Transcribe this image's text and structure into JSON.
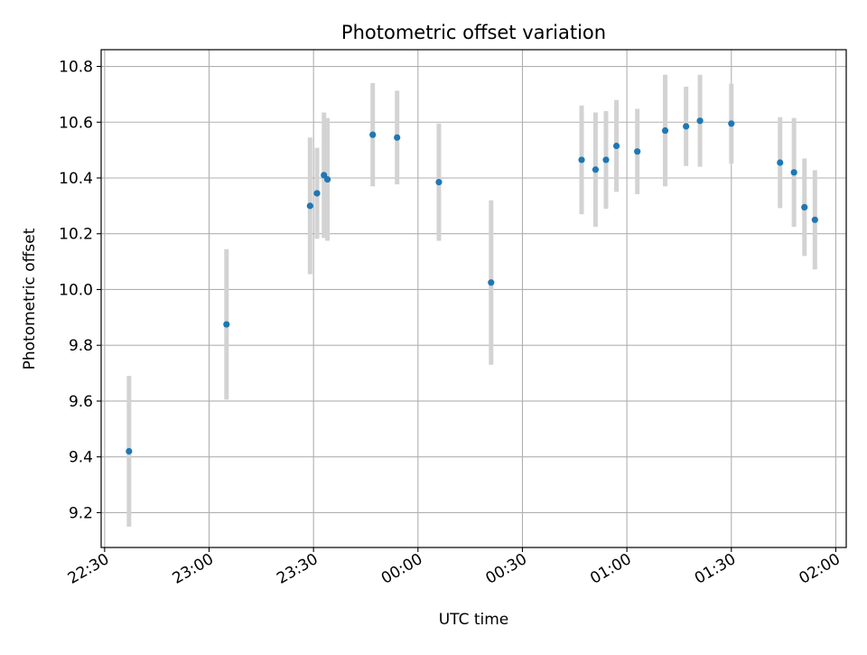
{
  "chart_data": {
    "type": "scatter",
    "title": "Photometric offset variation",
    "xlabel": "UTC time",
    "ylabel": "Photometric offset",
    "x_ticks": [
      "22:30",
      "23:00",
      "23:30",
      "00:00",
      "00:30",
      "01:00",
      "01:30",
      "02:00"
    ],
    "x_tick_hours": [
      22.5,
      23.0,
      23.5,
      24.0,
      24.5,
      25.0,
      25.5,
      26.0
    ],
    "y_ticks": [
      "9.2",
      "9.4",
      "9.6",
      "9.8",
      "10.0",
      "10.2",
      "10.4",
      "10.6",
      "10.8"
    ],
    "xlim": [
      "22:29",
      "02:03"
    ],
    "ylim": [
      9.075,
      10.86
    ],
    "grid": true,
    "marker_color": "#1f77b4",
    "errorbar_color": "#d3d3d3",
    "points": [
      {
        "time": "22:37",
        "y": 9.42,
        "yerr": 0.27
      },
      {
        "time": "23:05",
        "y": 9.875,
        "yerr": 0.27
      },
      {
        "time": "23:29",
        "y": 10.3,
        "yerr": 0.245
      },
      {
        "time": "23:31",
        "y": 10.345,
        "yerr": 0.163
      },
      {
        "time": "23:33",
        "y": 10.41,
        "yerr": 0.225
      },
      {
        "time": "23:34",
        "y": 10.395,
        "yerr": 0.22
      },
      {
        "time": "23:47",
        "y": 10.555,
        "yerr": 0.185
      },
      {
        "time": "23:54",
        "y": 10.545,
        "yerr": 0.168
      },
      {
        "time": "00:06",
        "y": 10.385,
        "yerr": 0.21
      },
      {
        "time": "00:21",
        "y": 10.025,
        "yerr": 0.295
      },
      {
        "time": "00:47",
        "y": 10.465,
        "yerr": 0.195
      },
      {
        "time": "00:51",
        "y": 10.43,
        "yerr": 0.205
      },
      {
        "time": "00:54",
        "y": 10.465,
        "yerr": 0.175
      },
      {
        "time": "00:57",
        "y": 10.515,
        "yerr": 0.165
      },
      {
        "time": "01:03",
        "y": 10.495,
        "yerr": 0.153
      },
      {
        "time": "01:11",
        "y": 10.57,
        "yerr": 0.2
      },
      {
        "time": "01:17",
        "y": 10.585,
        "yerr": 0.142
      },
      {
        "time": "01:21",
        "y": 10.605,
        "yerr": 0.165
      },
      {
        "time": "01:30",
        "y": 10.595,
        "yerr": 0.143
      },
      {
        "time": "01:44",
        "y": 10.455,
        "yerr": 0.163
      },
      {
        "time": "01:48",
        "y": 10.42,
        "yerr": 0.195
      },
      {
        "time": "01:51",
        "y": 10.295,
        "yerr": 0.175
      },
      {
        "time": "01:54",
        "y": 10.25,
        "yerr": 0.178
      }
    ]
  }
}
